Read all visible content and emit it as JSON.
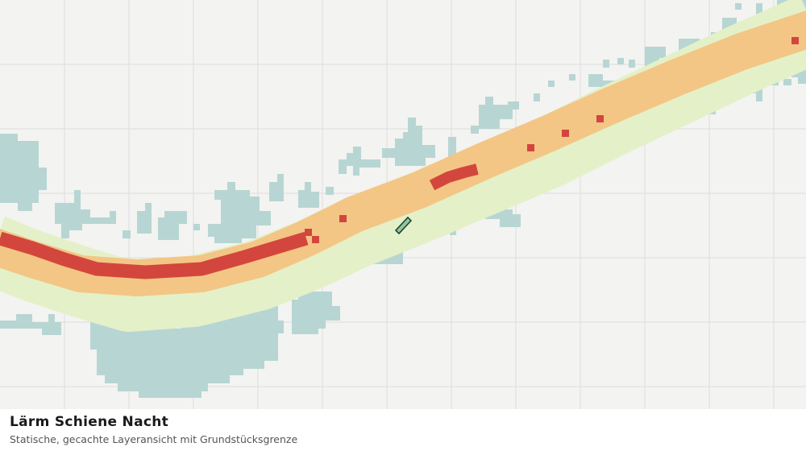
{
  "header": {
    "title": "Lärm Schiene Nacht",
    "subtitle": "Statische, gecachte Layeransicht mit Grundstücksgrenze"
  }
}
